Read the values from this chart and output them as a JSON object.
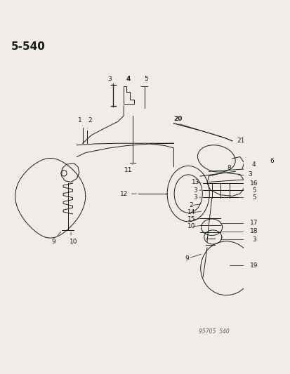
{
  "title": "5–540",
  "footer": "95705  540",
  "bg_color": "#f0ede8",
  "line_color": "#1a1a1a",
  "text_color": "#1a1a1a",
  "title_fontsize": 11,
  "label_fontsize": 6.5,
  "figsize": [
    4.14,
    5.33
  ],
  "dpi": 100
}
